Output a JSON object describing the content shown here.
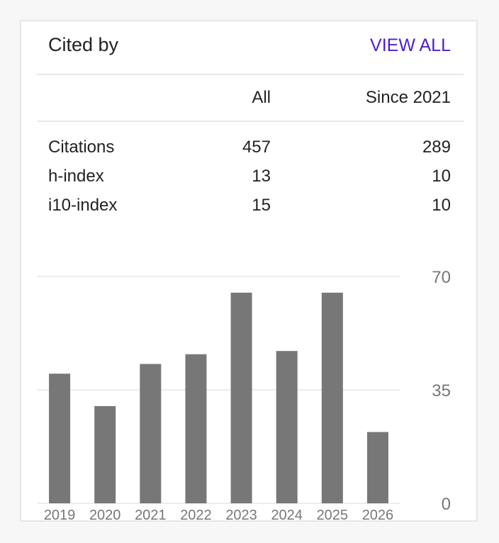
{
  "header": {
    "title": "Cited by",
    "view_all": "VIEW ALL"
  },
  "table": {
    "columns": [
      "All",
      "Since 2021"
    ],
    "rows": [
      {
        "label": "Citations",
        "all": "457",
        "since": "289"
      },
      {
        "label": "h-index",
        "all": "13",
        "since": "10"
      },
      {
        "label": "i10-index",
        "all": "15",
        "since": "10"
      }
    ]
  },
  "colors": {
    "bar": "#777777",
    "link": "#4a1fd0",
    "grid": "#e6e6e6",
    "axis": "#777777"
  },
  "chart_data": {
    "type": "bar",
    "categories": [
      "2019",
      "2020",
      "2021",
      "2022",
      "2023",
      "2024",
      "2025",
      "2026"
    ],
    "values": [
      40,
      30,
      43,
      46,
      65,
      47,
      65,
      22
    ],
    "yticks": [
      "0",
      "35",
      "70"
    ],
    "ylim": [
      0,
      70
    ],
    "grid": true,
    "title": "",
    "xlabel": "",
    "ylabel": ""
  }
}
